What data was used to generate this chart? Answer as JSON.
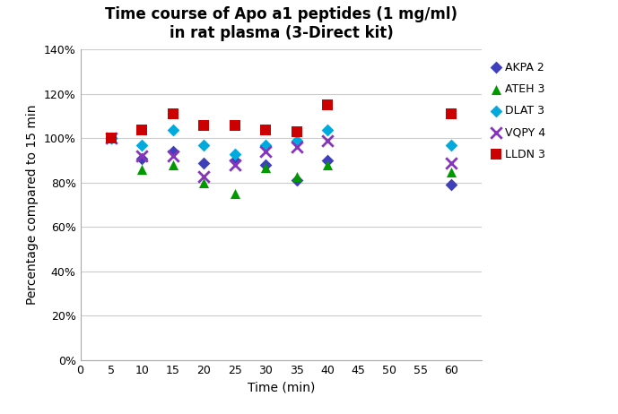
{
  "title": "Time course of Apo a1 peptides (1 mg/ml)\nin rat plasma (3-Direct kit)",
  "xlabel": "Time (min)",
  "ylabel": "Percentage compared to 15 min",
  "series_order": [
    "AKPA 2",
    "ATEH 3",
    "DLAT 3",
    "VQPY 4",
    "LLDN 3"
  ],
  "series": {
    "AKPA 2": {
      "color": "#3F3FBB",
      "marker": "D",
      "markersize": 7,
      "x": [
        5,
        10,
        15,
        20,
        25,
        30,
        35,
        40,
        60
      ],
      "y": [
        1.0,
        0.91,
        0.94,
        0.89,
        0.9,
        0.88,
        0.81,
        0.9,
        0.79
      ]
    },
    "ATEH 3": {
      "color": "#009900",
      "marker": "^",
      "markersize": 8,
      "x": [
        5,
        10,
        15,
        20,
        25,
        30,
        35,
        40,
        60
      ],
      "y": [
        1.0,
        0.86,
        0.88,
        0.8,
        0.75,
        0.87,
        0.83,
        0.88,
        0.85
      ]
    },
    "DLAT 3": {
      "color": "#00AADD",
      "marker": "D",
      "markersize": 7,
      "x": [
        5,
        10,
        15,
        20,
        25,
        30,
        35,
        40,
        60
      ],
      "y": [
        1.0,
        0.97,
        1.04,
        0.97,
        0.93,
        0.97,
        0.99,
        1.04,
        0.97
      ]
    },
    "VQPY 4": {
      "color": "#8833BB",
      "marker": "x",
      "markersize": 9,
      "x": [
        5,
        10,
        15,
        20,
        25,
        30,
        35,
        40,
        60
      ],
      "y": [
        1.0,
        0.92,
        0.92,
        0.83,
        0.88,
        0.94,
        0.96,
        0.99,
        0.89
      ]
    },
    "LLDN 3": {
      "color": "#CC0000",
      "marker": "s",
      "markersize": 8,
      "x": [
        5,
        10,
        15,
        20,
        25,
        30,
        35,
        40,
        60
      ],
      "y": [
        1.0,
        1.04,
        1.11,
        1.06,
        1.06,
        1.04,
        1.03,
        1.15,
        1.11
      ]
    }
  },
  "xlim": [
    0,
    65
  ],
  "ylim": [
    0.0,
    1.4
  ],
  "xticks": [
    0,
    5,
    10,
    15,
    20,
    25,
    30,
    35,
    40,
    45,
    50,
    55,
    60
  ],
  "yticks": [
    0.0,
    0.2,
    0.4,
    0.6,
    0.8,
    1.0,
    1.2,
    1.4
  ],
  "ytick_labels": [
    "0%",
    "20%",
    "40%",
    "60%",
    "80%",
    "100%",
    "120%",
    "140%"
  ],
  "grid_color": "#CCCCCC",
  "background_color": "#FFFFFF",
  "title_fontsize": 12,
  "axis_label_fontsize": 10,
  "tick_fontsize": 9,
  "legend_fontsize": 9
}
